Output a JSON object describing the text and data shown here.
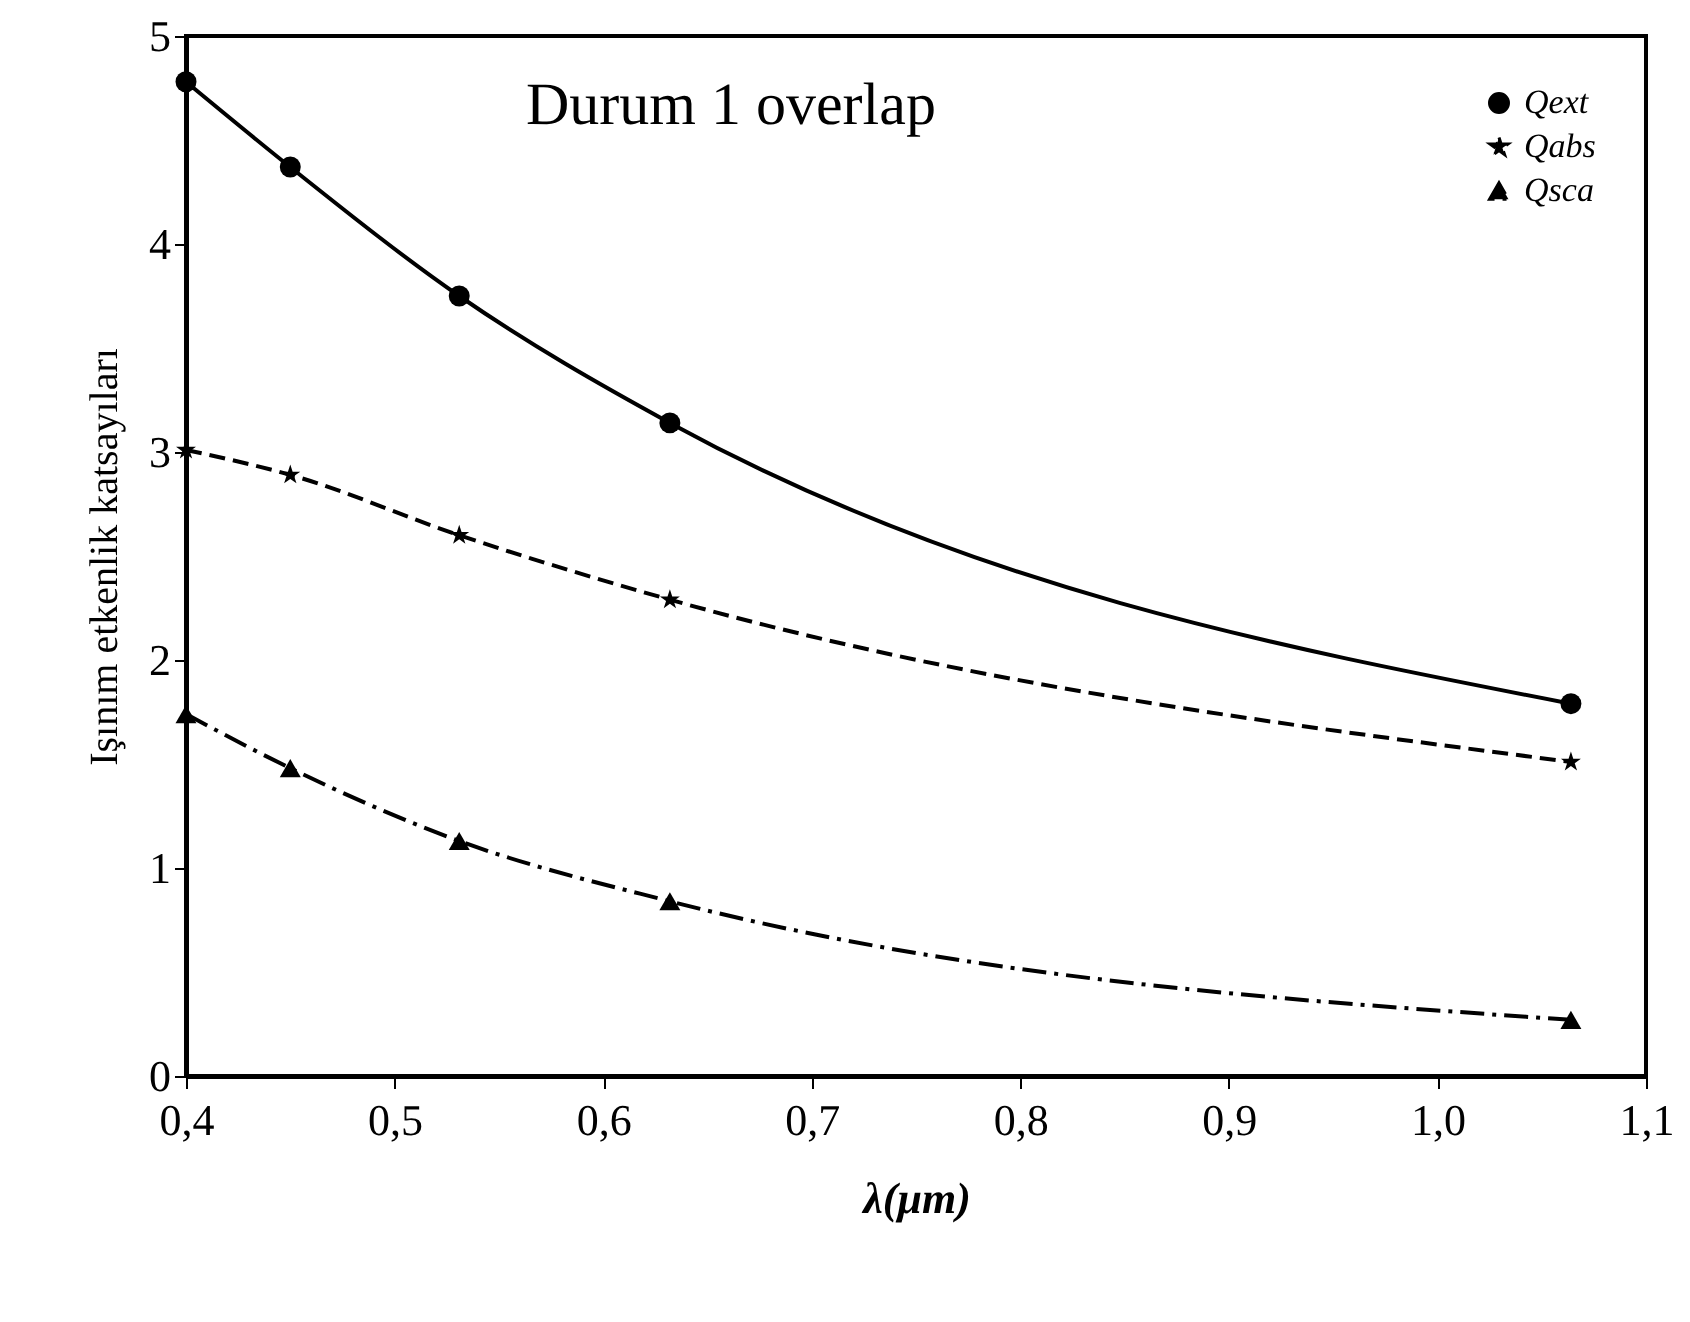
{
  "chart_data": {
    "type": "line",
    "xlabel": "λ(μm)",
    "ylabel": "Işınım etkenlik katsayıları",
    "annotations": [
      "Durum 1 overlap"
    ],
    "x": [
      0.4,
      0.45,
      0.531,
      0.632,
      1.064
    ],
    "series": [
      {
        "name": "Qext",
        "color": "#000000",
        "marker": "circle",
        "line_style": "solid",
        "values": [
          4.78,
          4.37,
          3.75,
          3.14,
          1.79
        ]
      },
      {
        "name": "Qabs",
        "color": "#000000",
        "marker": "star",
        "line_style": "dashed",
        "values": [
          3.01,
          2.89,
          2.6,
          2.29,
          1.51
        ]
      },
      {
        "name": "Qsca",
        "color": "#000000",
        "marker": "triangle",
        "line_style": "dashdot",
        "values": [
          1.74,
          1.48,
          1.13,
          0.84,
          0.27
        ]
      }
    ],
    "xlim": [
      0.4,
      1.1
    ],
    "xticks": [
      {
        "value": 0.4,
        "label": "0,4"
      },
      {
        "value": 0.5,
        "label": "0,5"
      },
      {
        "value": 0.6,
        "label": "0,6"
      },
      {
        "value": 0.7,
        "label": "0,7"
      },
      {
        "value": 0.8,
        "label": "0,8"
      },
      {
        "value": 0.9,
        "label": "0,9"
      },
      {
        "value": 1.0,
        "label": "1,0"
      },
      {
        "value": 1.1,
        "label": "1,1"
      }
    ],
    "ylim": [
      0,
      5
    ],
    "yticks": [
      0,
      1,
      2,
      3,
      4,
      5
    ],
    "grid": false,
    "legend": "top right"
  }
}
